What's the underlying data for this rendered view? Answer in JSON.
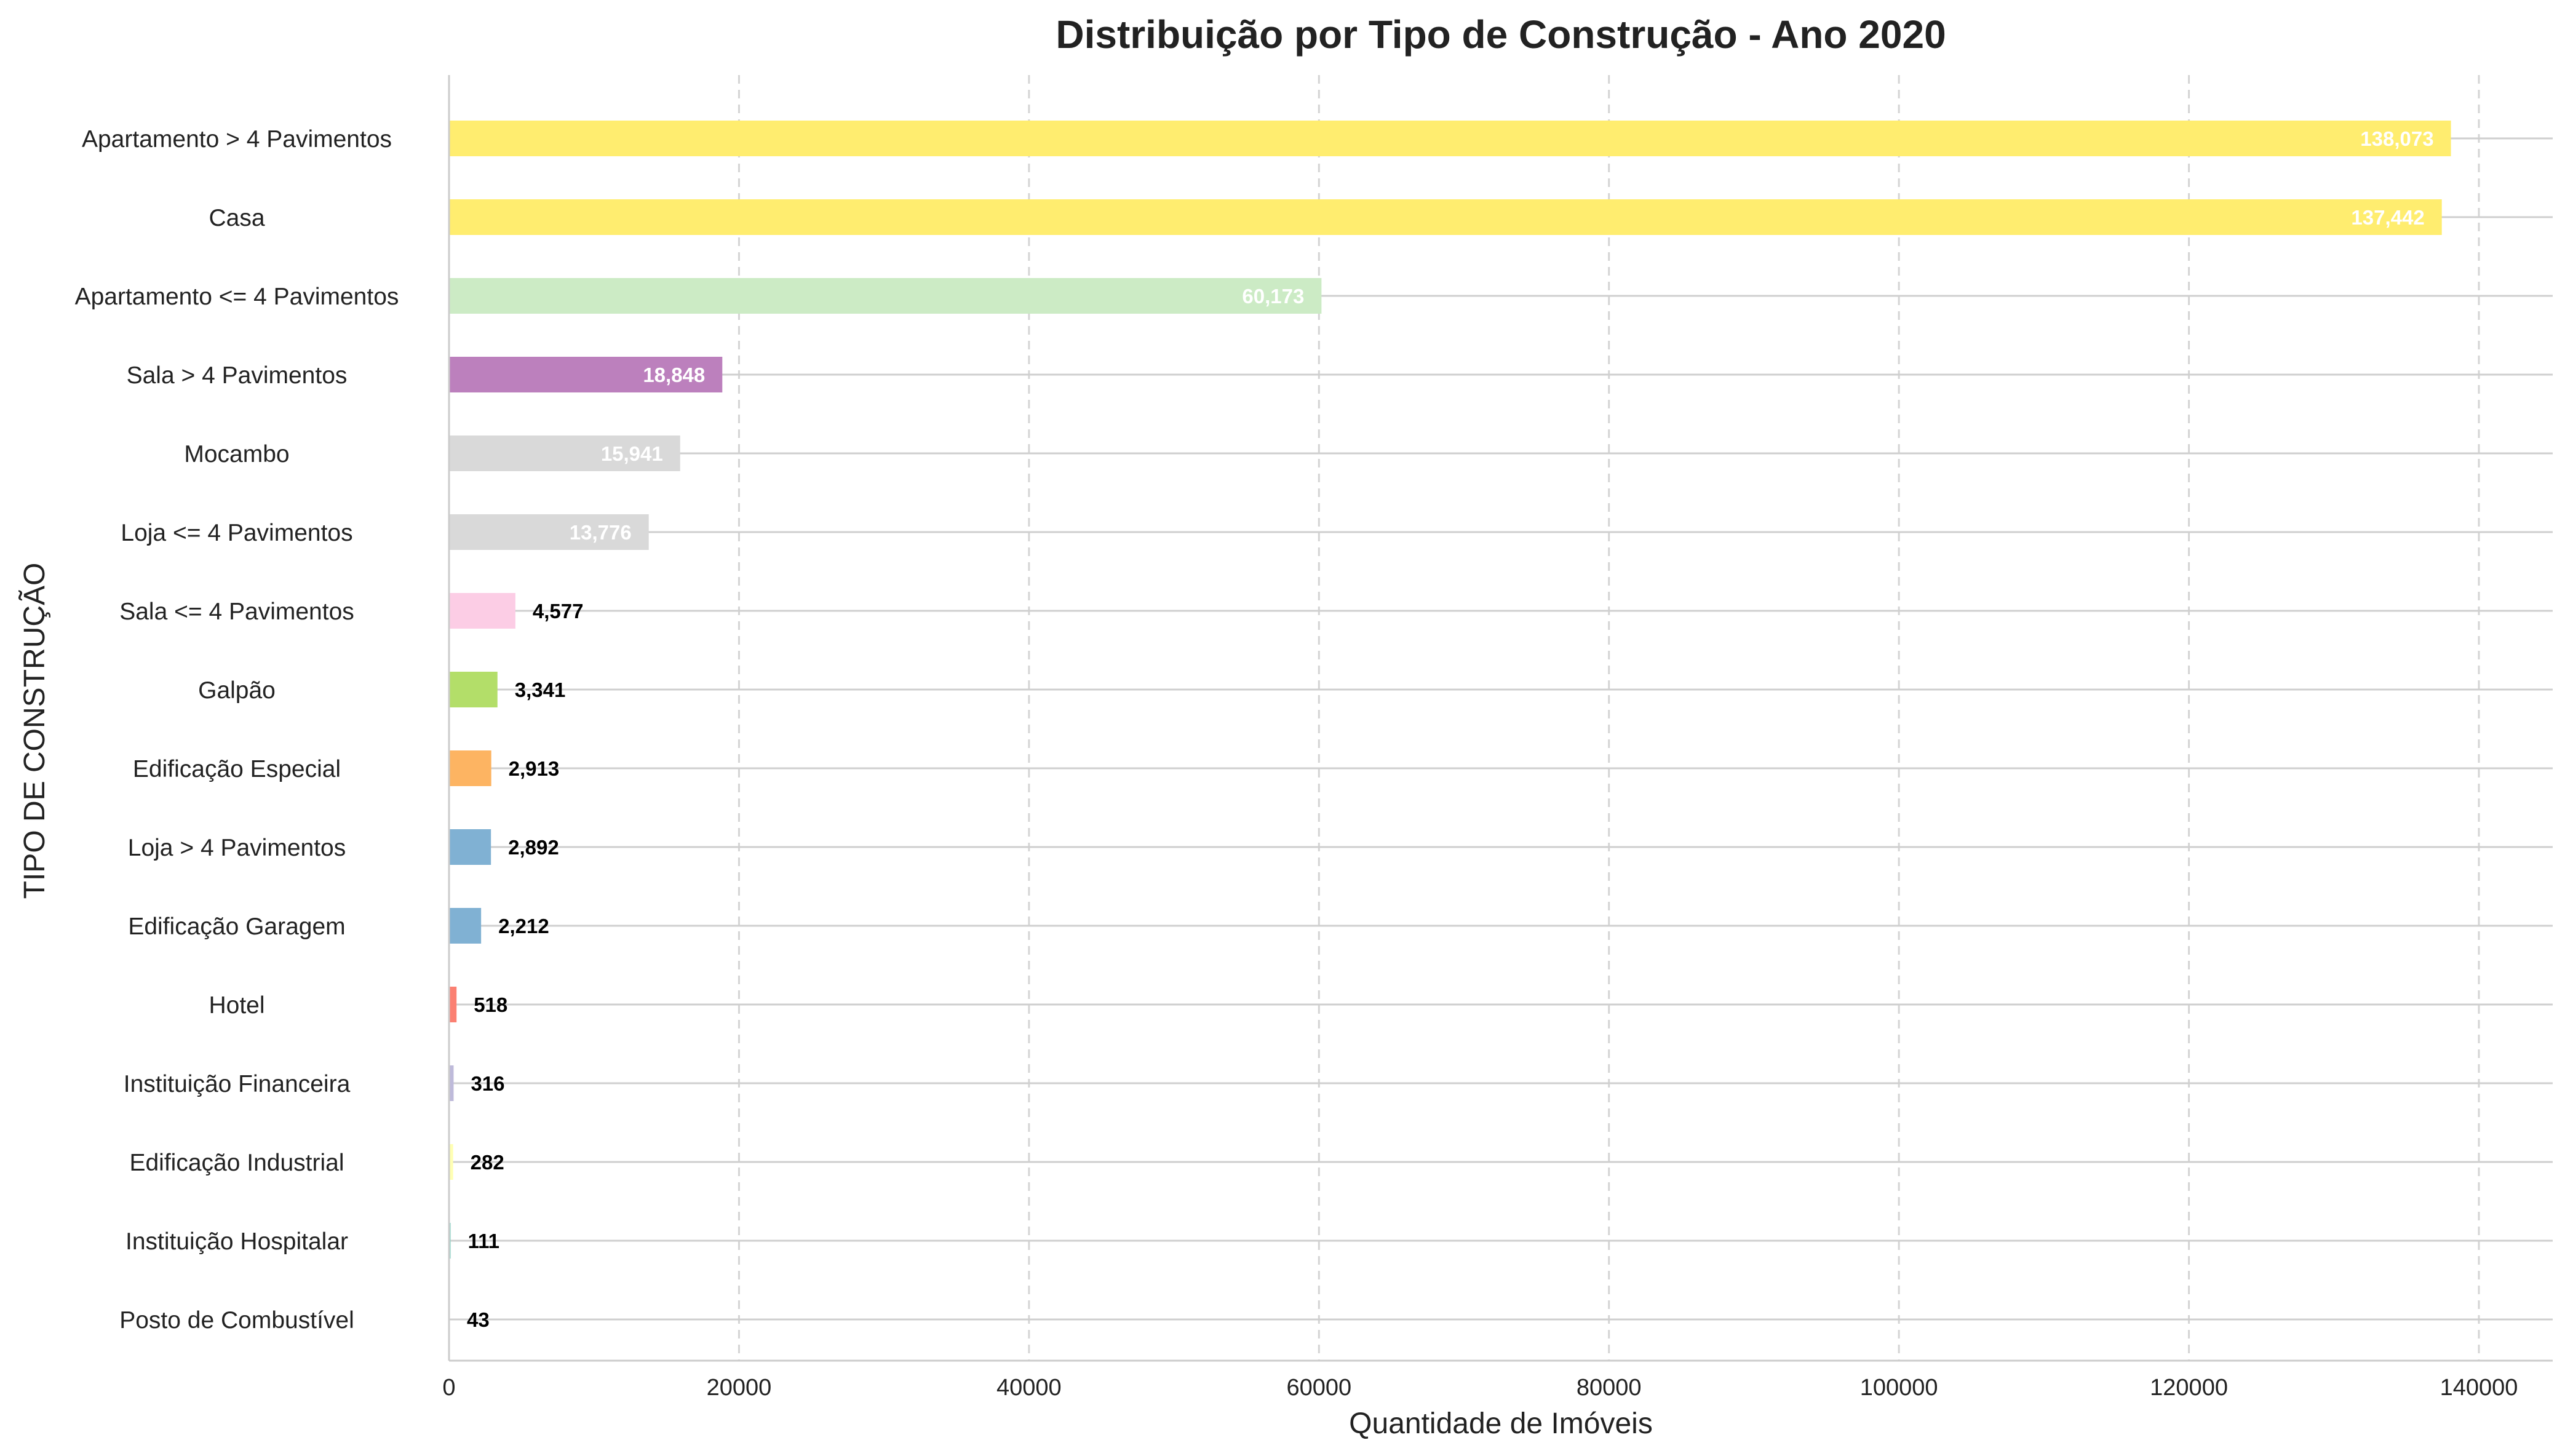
{
  "chart_data": {
    "type": "bar",
    "orientation": "horizontal",
    "title": "Distribuição por Tipo de Construção - Ano 2020",
    "xlabel": "Quantidade de Imóveis",
    "ylabel": "TIPO DE CONSTRUÇÃO",
    "xlim": [
      0,
      145000
    ],
    "xticks": [
      0,
      20000,
      40000,
      60000,
      80000,
      100000,
      120000,
      140000
    ],
    "grid": "x-dashed",
    "categories": [
      "Apartamento > 4 Pavimentos",
      "Casa",
      "Apartamento <= 4 Pavimentos",
      "Sala > 4 Pavimentos",
      "Mocambo",
      "Loja <= 4 Pavimentos",
      "Sala <= 4 Pavimentos",
      "Galpão",
      "Edificação Especial",
      "Loja > 4 Pavimentos",
      "Edificação Garagem",
      "Hotel",
      "Instituição Financeira",
      "Edificação Industrial",
      "Instituição Hospitalar",
      "Posto de Combustível"
    ],
    "values": [
      138073,
      137442,
      60173,
      18848,
      15941,
      13776,
      4577,
      3341,
      2913,
      2892,
      2212,
      518,
      316,
      282,
      111,
      43
    ],
    "value_labels": [
      "138,073",
      "137,442",
      "60,173",
      "18,848",
      "15,941",
      "13,776",
      "4,577",
      "3,341",
      "2,913",
      "2,892",
      "2,212",
      "518",
      "316",
      "282",
      "111",
      "43"
    ],
    "colors": [
      "#ffed6f",
      "#ffed6f",
      "#ccebc5",
      "#bc80bd",
      "#d9d9d9",
      "#d9d9d9",
      "#fccde5",
      "#b3de69",
      "#fdb462",
      "#80b1d3",
      "#80b1d3",
      "#fb8072",
      "#bebada",
      "#ffffb3",
      "#8dd3c7",
      "#8dd3c7"
    ]
  }
}
